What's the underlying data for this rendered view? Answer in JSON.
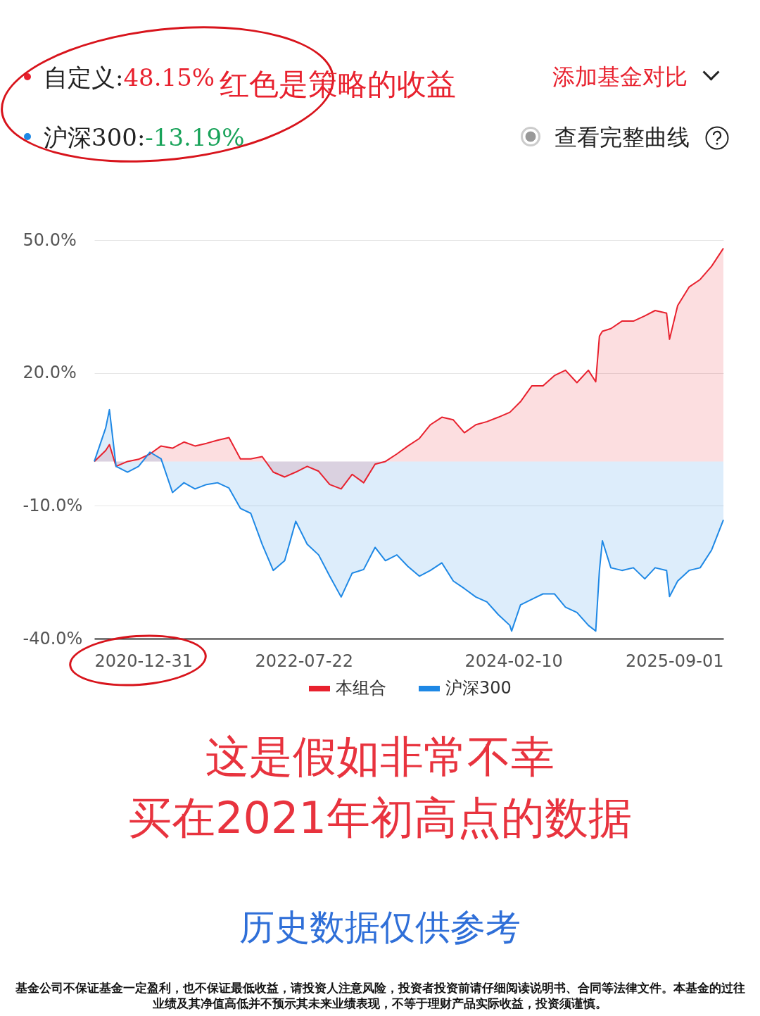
{
  "chart_data": {
    "type": "area",
    "annotations": [
      "自定义:48.15%",
      "沪深300:-13.19%",
      "红色是策略的收益",
      "添加基金对比",
      "查看完整曲线",
      "这是假如非常不幸",
      "买在2021年初高点的数据",
      "历史数据仅供参考",
      "基金公司不保证基金一定盈利，也不保证最低收益，请投资人注意风险，投资者投资前请仔细阅读说明书、合同等法律文件。本基金的过往业绩及其净值高低并不预示其未来业绩表现，不等于理财产品实际收益，投资须谨慎。"
    ],
    "x": [
      "2020-12-31",
      "2021-01-31",
      "2021-02-10",
      "2021-02-28",
      "2021-03-31",
      "2021-04-30",
      "2021-05-31",
      "2021-06-30",
      "2021-07-31",
      "2021-08-31",
      "2021-09-30",
      "2021-10-31",
      "2021-11-30",
      "2021-12-31",
      "2022-01-31",
      "2022-02-28",
      "2022-03-31",
      "2022-04-30",
      "2022-05-31",
      "2022-06-30",
      "2022-07-31",
      "2022-08-31",
      "2022-09-30",
      "2022-10-31",
      "2022-11-30",
      "2022-12-31",
      "2023-01-31",
      "2023-02-28",
      "2023-03-31",
      "2023-04-30",
      "2023-05-31",
      "2023-06-30",
      "2023-07-31",
      "2023-08-31",
      "2023-09-30",
      "2023-10-31",
      "2023-11-30",
      "2023-12-31",
      "2024-01-31",
      "2024-02-05",
      "2024-02-29",
      "2024-03-31",
      "2024-04-30",
      "2024-05-31",
      "2024-06-30",
      "2024-07-31",
      "2024-08-31",
      "2024-09-20",
      "2024-09-30",
      "2024-10-08",
      "2024-10-31",
      "2024-11-30",
      "2024-12-31",
      "2025-01-31",
      "2025-02-28",
      "2025-03-31",
      "2025-04-08",
      "2025-04-30",
      "2025-05-31",
      "2025-06-30",
      "2025-07-31",
      "2025-09-01"
    ],
    "series": [
      {
        "name": "本组合",
        "color": "#e8212e",
        "values": [
          0,
          2.5,
          3.8,
          -1.1,
          0,
          0.5,
          1.7,
          3.5,
          3.0,
          4.4,
          3.5,
          4.1,
          4.8,
          5.4,
          0.6,
          0.6,
          1.1,
          -2.4,
          -3.5,
          -2.4,
          -1.1,
          -2.2,
          -5.2,
          -6.2,
          -2.9,
          -4.8,
          -0.6,
          0,
          1.7,
          3.5,
          5.2,
          8.3,
          10.0,
          9.4,
          6.5,
          8.3,
          9.0,
          10.0,
          11.1,
          11.5,
          13.5,
          17.1,
          17.1,
          19.4,
          20.6,
          17.8,
          20.6,
          18.0,
          28.3,
          29.4,
          30.0,
          31.7,
          31.7,
          32.9,
          34.1,
          33.5,
          27.6,
          35.2,
          39.4,
          41.1,
          44.1,
          48.15
        ]
      },
      {
        "name": "沪深300",
        "color": "#1e88e5",
        "values": [
          0,
          7.6,
          11.7,
          -1.1,
          -2.4,
          -1.1,
          2.1,
          0.6,
          -7.0,
          -4.8,
          -6.2,
          -5.2,
          -4.8,
          -6.0,
          -10.6,
          -11.7,
          -18.7,
          -24.6,
          -22.4,
          -13.5,
          -18.7,
          -21.1,
          -25.9,
          -30.6,
          -25.2,
          -24.4,
          -19.4,
          -22.4,
          -21.1,
          -23.7,
          -25.9,
          -24.6,
          -22.9,
          -27.0,
          -28.7,
          -30.6,
          -31.7,
          -34.6,
          -37.0,
          -38.3,
          -32.4,
          -31.1,
          -29.9,
          -29.9,
          -32.9,
          -34.1,
          -37.0,
          -38.3,
          -24.6,
          -17.9,
          -24.0,
          -24.6,
          -24.0,
          -26.5,
          -24.0,
          -24.6,
          -30.5,
          -27.0,
          -24.6,
          -24.0,
          -20.0,
          -13.19
        ]
      }
    ],
    "xlim": [
      "2020-12-31",
      "2025-09-01"
    ],
    "xticks": [
      "2020-12-31",
      "2022-07-22",
      "2024-02-10",
      "2025-09-01"
    ],
    "ylim": [
      -40,
      50
    ],
    "yticks": [
      {
        "value": -40,
        "label": "-40.0%"
      },
      {
        "value": -10,
        "label": "-10.0%"
      },
      {
        "value": 20,
        "label": "20.0%"
      },
      {
        "value": 50,
        "label": "50.0%"
      }
    ],
    "grid": "y",
    "legend": "bottom",
    "line_style": "solid"
  }
}
